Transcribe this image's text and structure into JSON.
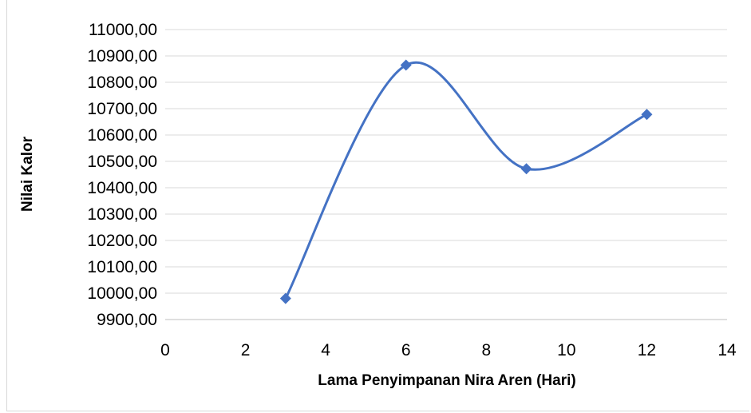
{
  "chart_data": {
    "type": "scatter",
    "title": "",
    "xlabel": "Lama Penyimpanan Nira Aren (Hari)",
    "ylabel": "Nilai Kalor",
    "xlim": [
      0,
      14
    ],
    "ylim": [
      9900,
      11000
    ],
    "x_ticks": [
      0,
      2,
      4,
      6,
      8,
      10,
      12,
      14
    ],
    "y_ticks": [
      9900,
      10000,
      10100,
      10200,
      10300,
      10400,
      10500,
      10600,
      10700,
      10800,
      10900,
      11000
    ],
    "x_tick_labels": [
      "0",
      "2",
      "4",
      "6",
      "8",
      "10",
      "12",
      "14"
    ],
    "y_tick_labels": [
      "9900,00",
      "10000,00",
      "10100,00",
      "10200,00",
      "10300,00",
      "10400,00",
      "10500,00",
      "10600,00",
      "10700,00",
      "10800,00",
      "10900,00",
      "11000,00"
    ],
    "grid": "horizontal",
    "line_style": "smooth",
    "marker": "diamond",
    "series": [
      {
        "x": [
          3,
          6,
          9,
          12
        ],
        "y": [
          9980,
          10865,
          10472,
          10678
        ],
        "color": "#4472c4"
      }
    ]
  }
}
